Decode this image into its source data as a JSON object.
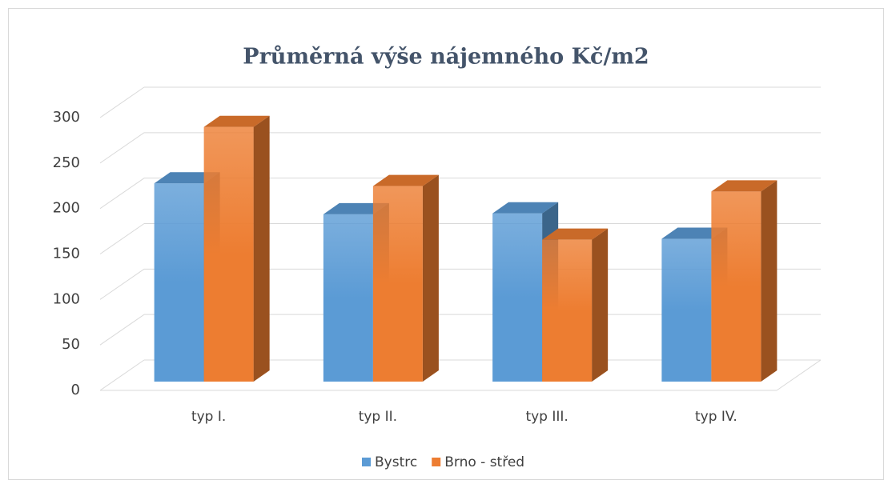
{
  "chart_data": {
    "type": "bar3d",
    "title": "Průměrná výše nájemného Kč/m2",
    "categories": [
      "typ I.",
      "typ II.",
      "typ III.",
      "typ IV."
    ],
    "series": [
      {
        "name": "Bystrc",
        "color": "#5b9bd5",
        "values": [
          218,
          184,
          185,
          157
        ]
      },
      {
        "name": "Brno - střed",
        "color": "#ed7d31",
        "values": [
          280,
          215,
          156,
          209
        ]
      }
    ],
    "ylim": [
      0,
      300
    ],
    "yticks": [
      0,
      50,
      100,
      150,
      200,
      250,
      300
    ],
    "grid": true,
    "legend": "bottom"
  }
}
